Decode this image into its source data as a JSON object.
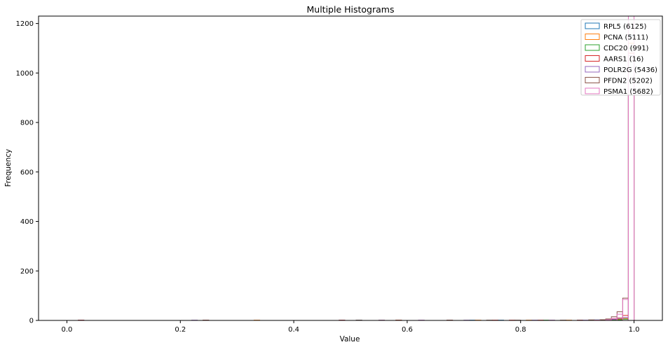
{
  "chart_data": {
    "type": "histogram",
    "title": "Multiple Histograms",
    "xlabel": "Value",
    "ylabel": "Frequency",
    "xlim": [
      -0.05,
      1.05
    ],
    "ylim": [
      0,
      1230
    ],
    "xticks": [
      0.0,
      0.2,
      0.4,
      0.6,
      0.8,
      1.0
    ],
    "xtick_labels": [
      "0.0",
      "0.2",
      "0.4",
      "0.6",
      "0.8",
      "1.0"
    ],
    "yticks": [
      0,
      200,
      400,
      600,
      800,
      1000,
      1200
    ],
    "ytick_labels": [
      "0",
      "200",
      "400",
      "600",
      "800",
      "1000",
      "1200"
    ],
    "grid": false,
    "legend_position": "top-right",
    "histtype": "step",
    "bin_width": 0.01,
    "series": [
      {
        "name": "RPL5 (6125)",
        "color": "#1f77b4",
        "bins": [
          [
            0.02,
            1
          ],
          [
            0.48,
            1
          ],
          [
            0.51,
            1
          ],
          [
            0.62,
            1
          ],
          [
            0.71,
            1
          ],
          [
            0.76,
            1
          ],
          [
            0.85,
            1
          ],
          [
            0.9,
            1
          ],
          [
            0.93,
            2
          ],
          [
            0.94,
            2
          ],
          [
            0.95,
            2
          ],
          [
            0.96,
            3
          ],
          [
            0.97,
            4
          ],
          [
            0.98,
            6
          ],
          [
            0.99,
            1150
          ]
        ]
      },
      {
        "name": "PCNA (5111)",
        "color": "#ff7f0e",
        "bins": [
          [
            0.33,
            1
          ],
          [
            0.55,
            1
          ],
          [
            0.72,
            1
          ],
          [
            0.81,
            1
          ],
          [
            0.88,
            1
          ],
          [
            0.93,
            1
          ],
          [
            0.95,
            2
          ],
          [
            0.96,
            3
          ],
          [
            0.97,
            5
          ],
          [
            0.98,
            8
          ],
          [
            0.99,
            1120
          ]
        ]
      },
      {
        "name": "CDC20 (991)",
        "color": "#2ca02c",
        "bins": [
          [
            0.58,
            1
          ],
          [
            0.84,
            1
          ],
          [
            0.94,
            1
          ],
          [
            0.96,
            2
          ],
          [
            0.97,
            3
          ],
          [
            0.98,
            5
          ],
          [
            0.99,
            1100
          ]
        ]
      },
      {
        "name": "AARS1 (16)",
        "color": "#d62728",
        "bins": [
          [
            0.02,
            1
          ],
          [
            0.24,
            1
          ],
          [
            0.48,
            1
          ],
          [
            0.58,
            1
          ],
          [
            0.67,
            1
          ],
          [
            0.75,
            1
          ],
          [
            0.78,
            1
          ],
          [
            0.83,
            1
          ],
          [
            0.9,
            1
          ],
          [
            0.93,
            1
          ],
          [
            0.95,
            3
          ],
          [
            0.96,
            5
          ],
          [
            0.97,
            10
          ],
          [
            0.98,
            20
          ],
          [
            0.99,
            1080
          ]
        ]
      },
      {
        "name": "POLR2G (5436)",
        "color": "#9467bd",
        "bins": [
          [
            0.22,
            1
          ],
          [
            0.55,
            1
          ],
          [
            0.7,
            1
          ],
          [
            0.82,
            1
          ],
          [
            0.91,
            1
          ],
          [
            0.95,
            2
          ],
          [
            0.96,
            4
          ],
          [
            0.97,
            8
          ],
          [
            0.98,
            12
          ],
          [
            0.99,
            1070
          ]
        ]
      },
      {
        "name": "PFDN2 (5202)",
        "color": "#8c564b",
        "bins": [
          [
            0.24,
            1
          ],
          [
            0.51,
            1
          ],
          [
            0.67,
            1
          ],
          [
            0.74,
            1
          ],
          [
            0.79,
            1
          ],
          [
            0.87,
            1
          ],
          [
            0.92,
            2
          ],
          [
            0.94,
            3
          ],
          [
            0.95,
            6
          ],
          [
            0.96,
            15
          ],
          [
            0.97,
            35
          ],
          [
            0.98,
            90
          ],
          [
            0.99,
            1050
          ]
        ]
      },
      {
        "name": "PSMA1 (5682)",
        "color": "#e377c2",
        "bins": [
          [
            0.62,
            1
          ],
          [
            0.85,
            1
          ],
          [
            0.93,
            1
          ],
          [
            0.95,
            3
          ],
          [
            0.96,
            8
          ],
          [
            0.97,
            25
          ],
          [
            0.98,
            85
          ],
          [
            0.99,
            1240
          ]
        ]
      }
    ]
  }
}
